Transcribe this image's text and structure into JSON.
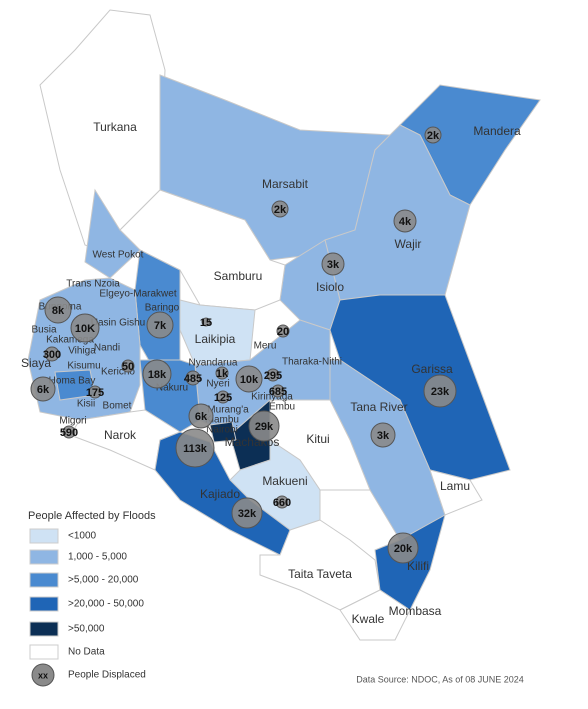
{
  "regions": [
    "Turkana",
    "Marsabit",
    "Mandera",
    "Wajir",
    "Samburu",
    "Isiolo",
    "West Pokot",
    "Trans Nzoia",
    "Elgeyo-Marakwet",
    "Baringo",
    "Uasin Gishu",
    "Bungoma",
    "Laikipia",
    "Meru",
    "Busia",
    "Kakamega",
    "Vihiga",
    "Nandi",
    "Siaya",
    "Kisumu",
    "Kericho",
    "Nyandarua",
    "Tharaka-Nithi",
    "Garissa",
    "Homa Bay",
    "Nakuru",
    "Nyeri",
    "Kirinyaga",
    "Embu",
    "Kisii",
    "Bomet",
    "Migori",
    "Murang'a",
    "Kiambu",
    "Narok",
    "Nairobi",
    "Machakos",
    "Kitui",
    "Tana River",
    "Kajiado",
    "Makueni",
    "Lamu",
    "Kilifi",
    "Taita Taveta",
    "Kwale",
    "Mombasa"
  ],
  "displaced": [
    "2k",
    "2k",
    "4k",
    "3k",
    "15",
    "20",
    "8k",
    "10K",
    "7k",
    "300",
    "50",
    "18k",
    "485",
    "1k",
    "10k",
    "295",
    "685",
    "6k",
    "175",
    "125",
    "6k",
    "29k",
    "590",
    "113k",
    "23k",
    "3k",
    "32k",
    "660",
    "20k"
  ],
  "legend": {
    "title": "People Affected by Floods",
    "items": [
      {
        "label": "<1000",
        "color": "#cfe2f4"
      },
      {
        "label": "1,000 - 5,000",
        "color": "#8fb6e3"
      },
      {
        "label": ">5,000 - 20,000",
        "color": "#4a8ad0"
      },
      {
        "label": ">20,000 - 50,000",
        "color": "#1f65b6"
      },
      {
        "label": ">50,000",
        "color": "#0c2f55"
      },
      {
        "label": "No Data",
        "color": "#ffffff"
      }
    ],
    "symbol": "xx",
    "symbol_label": "People Displaced"
  },
  "source": "Data Source: NDOC, As of 08 JUNE 2024"
}
